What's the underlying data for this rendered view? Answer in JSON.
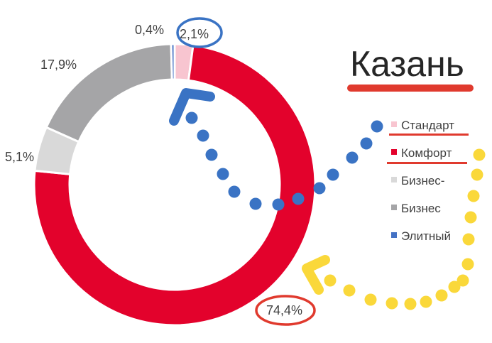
{
  "chart_data": {
    "type": "donut",
    "title": "Казань",
    "categories": [
      "Стандарт",
      "Комфорт",
      "Бизнес-",
      "Бизнес",
      "Элитный"
    ],
    "values": [
      2.1,
      74.4,
      5.1,
      17.9,
      0.4
    ],
    "labels": [
      "2,1%",
      "74,4%",
      "5,1%",
      "17,9%",
      "0,4%"
    ],
    "colors": [
      "#f8c5d0",
      "#e3022c",
      "#d9d9d9",
      "#a5a5a7",
      "#4472c4"
    ],
    "legend_position": "right",
    "highlighted": [
      "Стандарт",
      "Комфорт"
    ]
  },
  "annotations": {
    "circle_blue": "#3a73c4",
    "circle_red": "#e03a2e",
    "arrow_blue": "#3a73c4",
    "arrow_yellow": "#fad83a",
    "underline_red": "#e03a2e"
  }
}
